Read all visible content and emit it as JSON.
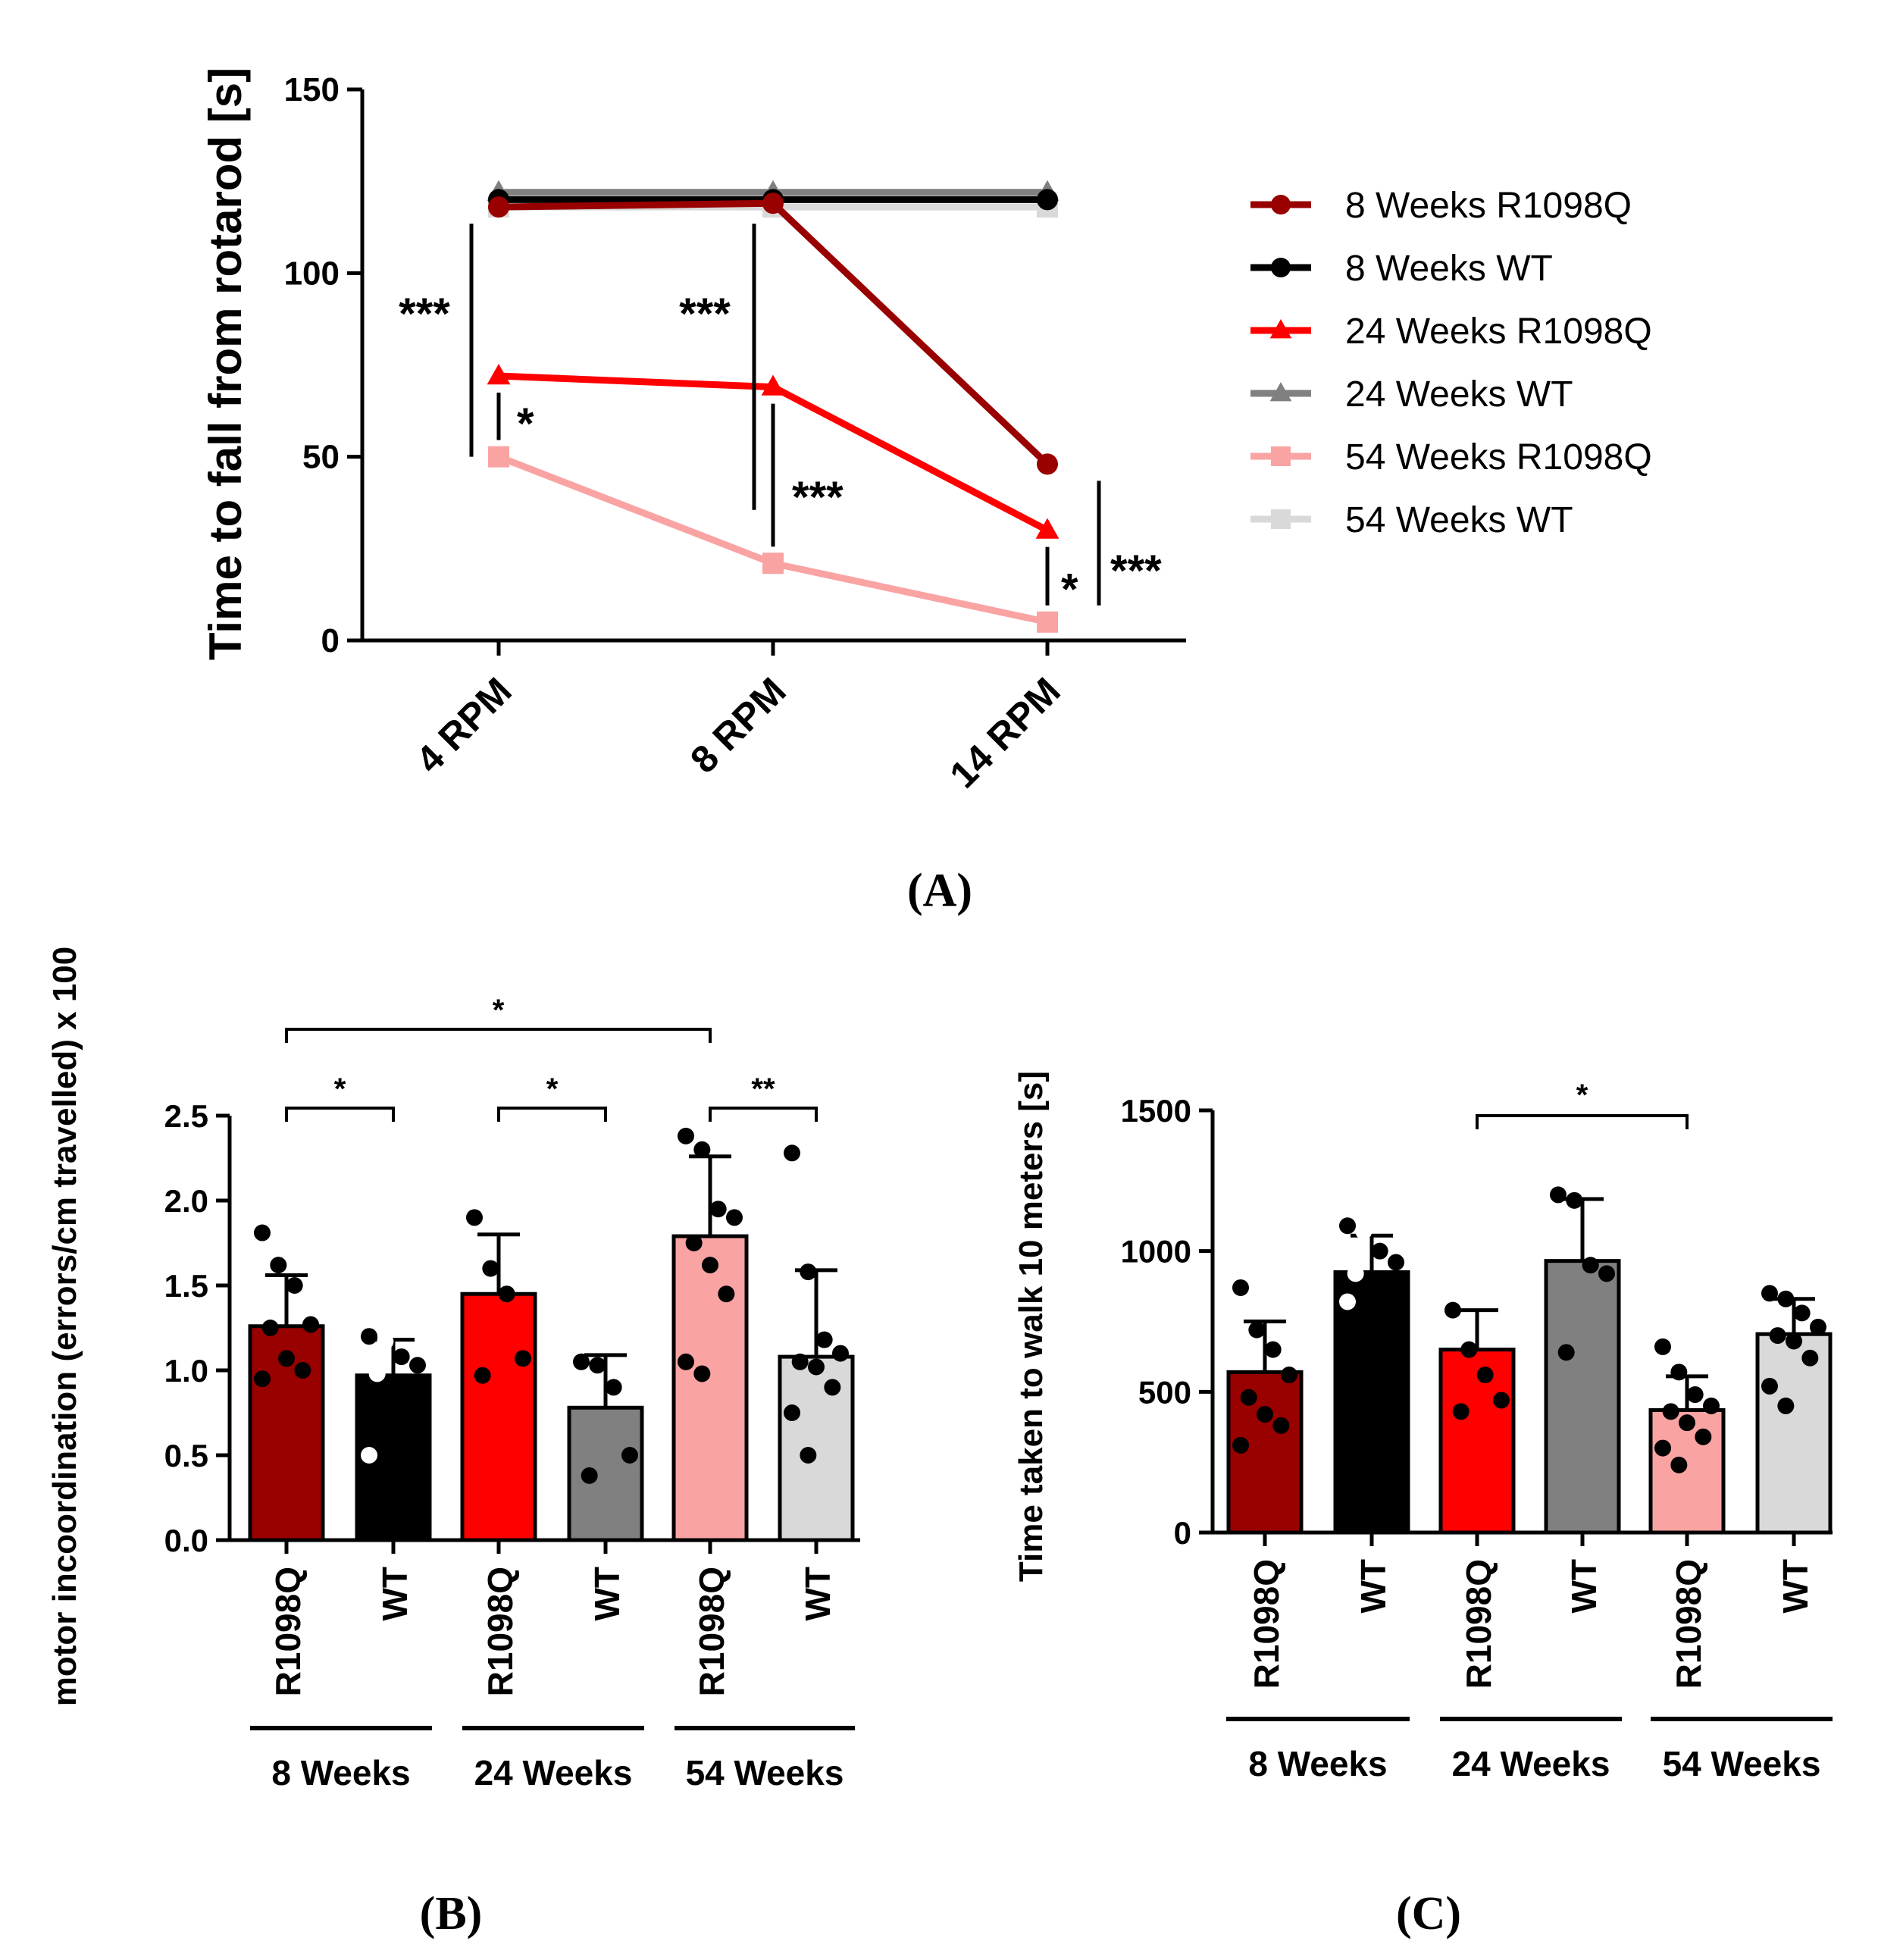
{
  "chart_data": [
    {
      "panel": "(A)",
      "type": "line",
      "categories": [
        "4 RPM",
        "8 RPM",
        "14 RPM"
      ],
      "ylabel": "Time to fall from rotarod [s]",
      "ylim": [
        0,
        150
      ],
      "yticks": [
        "0",
        "50",
        "100",
        "150"
      ],
      "series": [
        {
          "name": "8 Weeks R1098Q",
          "color": "#990000",
          "marker": "circle",
          "values": [
            118,
            119,
            48
          ]
        },
        {
          "name": "8 Weeks WT",
          "color": "#000000",
          "marker": "circle",
          "values": [
            120,
            120,
            120
          ]
        },
        {
          "name": "24 Weeks R1098Q",
          "color": "#ff0000",
          "marker": "triangle",
          "values": [
            72,
            69,
            30
          ]
        },
        {
          "name": "24 Weeks WT",
          "color": "#808080",
          "marker": "triangle",
          "values": [
            122,
            122,
            122
          ]
        },
        {
          "name": "54 Weeks R1098Q",
          "color": "#f9a3a3",
          "marker": "square",
          "values": [
            50,
            21,
            5
          ]
        },
        {
          "name": "54 Weeks WT",
          "color": "#d9d9d9",
          "marker": "square",
          "values": [
            118,
            118,
            118
          ]
        }
      ],
      "annotations": [
        {
          "text": "***",
          "x": "4 RPM",
          "from": 50,
          "to": 118
        },
        {
          "text": "*",
          "x": "4 RPM",
          "from": 50,
          "to": 72
        },
        {
          "text": "***",
          "x": "8 RPM",
          "from": 31,
          "to": 118
        },
        {
          "text": "***",
          "x": "8 RPM",
          "from": 21,
          "to": 69
        },
        {
          "text": "*",
          "x": "14 RPM",
          "from": 5,
          "to": 30
        },
        {
          "text": "***",
          "x": "14 RPM",
          "from": 5,
          "to": 48
        }
      ]
    },
    {
      "panel": "(B)",
      "type": "bar",
      "ylabel": "motor incoordination (errors/cm travelled) x 100",
      "ylim": [
        0,
        2.5
      ],
      "yticks": [
        "0.0",
        "0.5",
        "1.0",
        "1.5",
        "2.0",
        "2.5"
      ],
      "categories": [
        "R1098Q",
        "WT",
        "R1098Q",
        "WT",
        "R1098Q",
        "WT"
      ],
      "groups": [
        "8 Weeks",
        "24 Weeks",
        "54 Weeks"
      ],
      "colors": [
        "#990000",
        "#000000",
        "#ff0000",
        "#808080",
        "#f9a3a3",
        "#d9d9d9"
      ],
      "values": [
        1.26,
        0.97,
        1.45,
        0.78,
        1.79,
        1.08
      ],
      "errors": [
        0.3,
        0.21,
        0.35,
        0.31,
        0.47,
        0.51
      ],
      "points": [
        [
          1.81,
          1.62,
          1.5,
          1.27,
          1.25,
          1.07,
          1.0,
          0.95
        ],
        [
          1.2,
          1.17,
          1.08,
          1.03,
          0.98,
          0.93,
          0.75,
          0.5
        ],
        [
          1.9,
          1.6,
          1.45,
          1.07,
          0.97
        ],
        [
          1.05,
          1.03,
          0.9,
          0.5,
          0.38
        ],
        [
          2.38,
          2.3,
          1.95,
          1.9,
          1.75,
          1.62,
          1.45,
          1.05,
          0.98
        ],
        [
          2.28,
          1.58,
          1.18,
          1.1,
          1.05,
          1.02,
          0.9,
          0.75,
          0.5
        ]
      ],
      "brackets": [
        {
          "text": "*",
          "from": 0,
          "to": 1
        },
        {
          "text": "*",
          "from": 2,
          "to": 3
        },
        {
          "text": "**",
          "from": 4,
          "to": 5
        },
        {
          "text": "*",
          "from": 0,
          "to": 4
        }
      ]
    },
    {
      "panel": "(C)",
      "type": "bar",
      "ylabel": "Time taken to walk 10 meters [s]",
      "ylim": [
        0,
        1500
      ],
      "yticks": [
        "0",
        "500",
        "1000",
        "1500"
      ],
      "categories": [
        "R1098Q",
        "WT",
        "R1098Q",
        "WT",
        "R1098Q",
        "WT"
      ],
      "groups": [
        "8 Weeks",
        "24 Weeks",
        "54 Weeks"
      ],
      "colors": [
        "#990000",
        "#000000",
        "#ff0000",
        "#808080",
        "#f9a3a3",
        "#d9d9d9"
      ],
      "values": [
        570,
        925,
        650,
        965,
        435,
        705
      ],
      "errors": [
        180,
        130,
        140,
        220,
        120,
        125
      ],
      "points": [
        [
          870,
          720,
          650,
          560,
          480,
          420,
          380,
          310
        ],
        [
          1090,
          1070,
          1000,
          960,
          920,
          880,
          840,
          820
        ],
        [
          790,
          650,
          560,
          470,
          430
        ],
        [
          1200,
          1180,
          950,
          920,
          640
        ],
        [
          660,
          570,
          490,
          450,
          430,
          390,
          340,
          300,
          240
        ],
        [
          850,
          830,
          780,
          730,
          700,
          680,
          620,
          520,
          450
        ]
      ],
      "brackets": [
        {
          "text": "*",
          "from": 2,
          "to": 4
        }
      ]
    }
  ],
  "panel_labels": {
    "a": "(A)",
    "b": "(B)",
    "c": "(C)"
  }
}
